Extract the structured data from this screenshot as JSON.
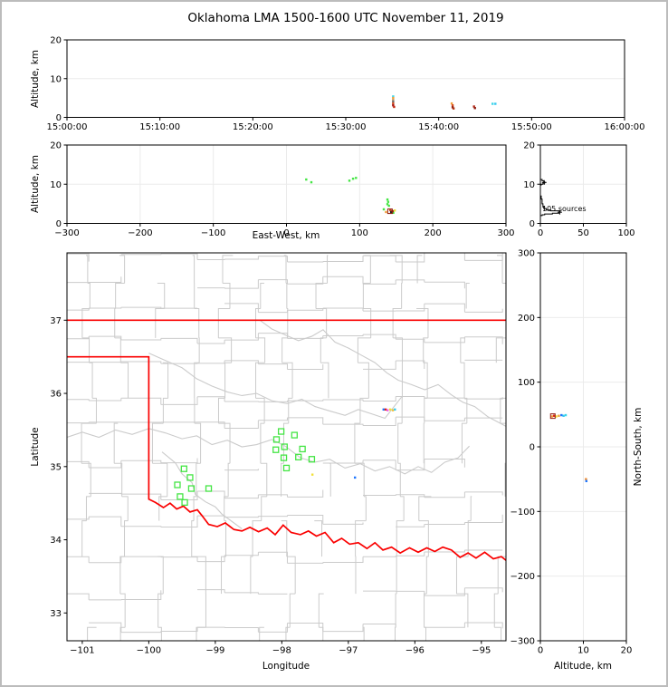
{
  "title": "Oklahoma LMA 1500-1600 UTC November 11, 2019",
  "labels": {
    "altitude_km": "Altitude, km",
    "east_west": "East-West, km",
    "latitude": "Latitude",
    "longitude": "Longitude",
    "north_south": "North-South, km",
    "sources_annotation": "105 sources"
  },
  "colors": {
    "frame_border": "#bcbcbc",
    "axis": "#000000",
    "grid": "#ebebeb",
    "county": "#cbcbcb",
    "river": "#cbcbcb",
    "state_border": "#fa0000",
    "station_green": "#44e544",
    "histogram_line": "#000000"
  },
  "chart_data": [
    {
      "id": "time_height",
      "type": "scatter",
      "xlabel": "",
      "ylabel": "Altitude, km",
      "xlim": [
        0,
        60
      ],
      "ylim": [
        0,
        20
      ],
      "xticks": {
        "values": [
          0,
          10,
          20,
          30,
          40,
          50,
          60
        ],
        "labels": [
          "15:00:00",
          "15:10:00",
          "15:20:00",
          "15:30:00",
          "15:40:00",
          "15:50:00",
          "16:00:00"
        ]
      },
      "yticks": {
        "values": [
          0,
          10,
          20
        ],
        "labels": [
          "0",
          "10",
          "20"
        ]
      },
      "xgrid": [],
      "ygrid": [
        10
      ],
      "points": [
        [
          35.1,
          5.4,
          "#3ad6e8"
        ],
        [
          35.1,
          5.0,
          "#f2a03a"
        ],
        [
          35.1,
          4.5,
          "#caa06a"
        ],
        [
          35.1,
          4.1,
          "#6b6b6b"
        ],
        [
          35.1,
          3.6,
          "#d24a1e"
        ],
        [
          35.1,
          3.1,
          "#a01313"
        ],
        [
          35.2,
          2.7,
          "#c22a12"
        ],
        [
          41.4,
          3.6,
          "#f2a03a"
        ],
        [
          41.5,
          3.1,
          "#d24a1e"
        ],
        [
          41.5,
          2.6,
          "#8f1a0e"
        ],
        [
          41.6,
          2.3,
          "#b03010"
        ],
        [
          43.8,
          2.8,
          "#b22a17"
        ],
        [
          43.9,
          2.4,
          "#8f1a0e"
        ],
        [
          45.8,
          3.5,
          "#3ad6e8"
        ],
        [
          46.1,
          3.5,
          "#35c8f0"
        ]
      ]
    },
    {
      "id": "ew_height",
      "type": "scatter",
      "xlabel": "East-West, km",
      "ylabel": "Altitude, km",
      "xlim": [
        -300,
        300
      ],
      "ylim": [
        0,
        20
      ],
      "xticks": {
        "values": [
          -300,
          -200,
          -100,
          0,
          100,
          200,
          300
        ],
        "labels": [
          "−300",
          "−200",
          "−100",
          "0",
          "100",
          "200",
          "300"
        ]
      },
      "yticks": {
        "values": [
          0,
          10,
          20
        ],
        "labels": [
          "0",
          "10",
          "20"
        ]
      },
      "xgrid": [
        -200,
        -100,
        0,
        100,
        200
      ],
      "ygrid": [
        10
      ],
      "points": [
        [
          27,
          11.2,
          "#44e544"
        ],
        [
          34,
          10.5,
          "#44e544"
        ],
        [
          86,
          10.9,
          "#44e544"
        ],
        [
          91,
          11.4,
          "#44e544"
        ],
        [
          95,
          11.6,
          "#44e544"
        ],
        [
          138,
          6.1,
          "#44e544"
        ],
        [
          139,
          5.5,
          "#44e544"
        ],
        [
          138,
          4.9,
          "#44e544"
        ],
        [
          140,
          4.5,
          "#44e544"
        ],
        [
          133,
          3.6,
          "#44e544"
        ],
        [
          146,
          2.7,
          "#44e544"
        ],
        [
          148,
          3.3,
          "#f2e03a"
        ],
        [
          136,
          2.9,
          "#f2a03a"
        ],
        [
          142,
          3.4,
          "#d24a1e"
        ],
        [
          143,
          2.9,
          "#222222"
        ],
        [
          145,
          3.1,
          "#8f1a0e"
        ]
      ],
      "squares": [
        [
          141.5,
          3.1,
          "#8f1a0e"
        ]
      ]
    },
    {
      "id": "alt_histogram",
      "type": "step",
      "xlabel": "",
      "ylabel": "",
      "xlim": [
        0,
        100
      ],
      "ylim": [
        0,
        20
      ],
      "xticks": {
        "values": [
          0,
          50,
          100
        ],
        "labels": [
          "0",
          "50",
          "100"
        ]
      },
      "yticks": {
        "values": [
          0,
          10,
          20
        ],
        "labels": [
          "0",
          "10",
          "20"
        ]
      },
      "xgrid": [
        50
      ],
      "ygrid": [
        10
      ],
      "annotation": "105 sources",
      "steps": [
        [
          0,
          0
        ],
        [
          0,
          2.0
        ],
        [
          2,
          2.0
        ],
        [
          2,
          2.2
        ],
        [
          5,
          2.2
        ],
        [
          5,
          2.4
        ],
        [
          14,
          2.4
        ],
        [
          14,
          2.6
        ],
        [
          22,
          2.6
        ],
        [
          22,
          3.0
        ],
        [
          23,
          3.0
        ],
        [
          23,
          3.2
        ],
        [
          12,
          3.2
        ],
        [
          12,
          3.4
        ],
        [
          7,
          3.4
        ],
        [
          7,
          3.8
        ],
        [
          4,
          3.8
        ],
        [
          4,
          4.2
        ],
        [
          3,
          4.2
        ],
        [
          3,
          5.0
        ],
        [
          2,
          5.0
        ],
        [
          2,
          6.2
        ],
        [
          1,
          6.2
        ],
        [
          1,
          7.0
        ],
        [
          0,
          7.0
        ],
        [
          0,
          9.8
        ],
        [
          1,
          9.8
        ],
        [
          1,
          10.0
        ],
        [
          3,
          10.0
        ],
        [
          3,
          10.3
        ],
        [
          5,
          10.3
        ],
        [
          5,
          10.6
        ],
        [
          4,
          10.6
        ],
        [
          4,
          10.9
        ],
        [
          2,
          10.9
        ],
        [
          2,
          11.2
        ],
        [
          0,
          11.2
        ],
        [
          0,
          20
        ]
      ],
      "plus_markers": [
        [
          22.5,
          2.85
        ],
        [
          4.5,
          10.45
        ]
      ]
    },
    {
      "id": "map",
      "type": "scatter",
      "xlabel": "Longitude",
      "ylabel": "Latitude",
      "xlim": [
        -101.23,
        -94.63
      ],
      "ylim": [
        32.62,
        37.92
      ],
      "xticks": {
        "values": [
          -101,
          -100,
          -99,
          -98,
          -97,
          -96,
          -95
        ],
        "labels": [
          "−101",
          "−100",
          "−99",
          "−98",
          "−97",
          "−96",
          "−95"
        ]
      },
      "yticks": {
        "values": [
          33,
          34,
          35,
          36,
          37
        ],
        "labels": [
          "33",
          "34",
          "35",
          "36",
          "37"
        ]
      },
      "xgrid": [],
      "ygrid": [],
      "stations": [
        [
          -98.01,
          35.48
        ],
        [
          -97.81,
          35.43
        ],
        [
          -98.08,
          35.37
        ],
        [
          -97.96,
          35.27
        ],
        [
          -98.09,
          35.23
        ],
        [
          -97.69,
          35.24
        ],
        [
          -97.97,
          35.12
        ],
        [
          -97.75,
          35.13
        ],
        [
          -97.55,
          35.1
        ],
        [
          -97.93,
          34.98
        ],
        [
          -99.47,
          34.97
        ],
        [
          -99.38,
          34.85
        ],
        [
          -99.57,
          34.75
        ],
        [
          -99.36,
          34.7
        ],
        [
          -99.1,
          34.7
        ],
        [
          -99.53,
          34.59
        ],
        [
          -99.46,
          34.51
        ]
      ],
      "points": [
        [
          -96.47,
          35.78,
          "#1f77ff"
        ],
        [
          -96.44,
          35.78,
          "#e02418"
        ],
        [
          -96.41,
          35.77,
          "#f05ae0"
        ],
        [
          -96.37,
          35.78,
          "#f2e03a"
        ],
        [
          -96.33,
          35.77,
          "#f2c03a"
        ],
        [
          -96.3,
          35.78,
          "#35c8f0"
        ],
        [
          -97.54,
          34.89,
          "#f2e03a"
        ],
        [
          -96.9,
          34.85,
          "#1f77ff"
        ]
      ],
      "state_border": [
        [
          [
            -101.23,
            37.0
          ],
          [
            -94.63,
            37.0
          ]
        ],
        [
          [
            -101.23,
            36.5
          ],
          [
            -100.0,
            36.5
          ],
          [
            -100.0,
            34.555
          ],
          [
            -99.9,
            34.51
          ],
          [
            -99.78,
            34.44
          ],
          [
            -99.68,
            34.5
          ],
          [
            -99.58,
            34.42
          ],
          [
            -99.48,
            34.46
          ],
          [
            -99.38,
            34.38
          ],
          [
            -99.27,
            34.41
          ],
          [
            -99.2,
            34.33
          ],
          [
            -99.1,
            34.21
          ],
          [
            -98.97,
            34.18
          ],
          [
            -98.85,
            34.23
          ],
          [
            -98.72,
            34.14
          ],
          [
            -98.6,
            34.12
          ],
          [
            -98.48,
            34.17
          ],
          [
            -98.35,
            34.11
          ],
          [
            -98.22,
            34.16
          ],
          [
            -98.1,
            34.07
          ],
          [
            -97.98,
            34.2
          ],
          [
            -97.86,
            34.1
          ],
          [
            -97.72,
            34.07
          ],
          [
            -97.6,
            34.12
          ],
          [
            -97.48,
            34.05
          ],
          [
            -97.35,
            34.1
          ],
          [
            -97.22,
            33.96
          ],
          [
            -97.1,
            34.02
          ],
          [
            -96.98,
            33.94
          ],
          [
            -96.85,
            33.96
          ],
          [
            -96.72,
            33.88
          ],
          [
            -96.6,
            33.96
          ],
          [
            -96.48,
            33.86
          ],
          [
            -96.35,
            33.9
          ],
          [
            -96.22,
            33.82
          ],
          [
            -96.08,
            33.89
          ],
          [
            -95.95,
            33.83
          ],
          [
            -95.82,
            33.89
          ],
          [
            -95.7,
            33.84
          ],
          [
            -95.58,
            33.9
          ],
          [
            -95.45,
            33.86
          ],
          [
            -95.32,
            33.76
          ],
          [
            -95.2,
            33.82
          ],
          [
            -95.08,
            33.75
          ],
          [
            -94.95,
            33.83
          ],
          [
            -94.82,
            33.74
          ],
          [
            -94.7,
            33.77
          ],
          [
            -94.63,
            33.72
          ]
        ]
      ],
      "rivers": [
        [
          [
            -98.33,
            37.0
          ],
          [
            -98.15,
            36.88
          ],
          [
            -97.95,
            36.8
          ],
          [
            -97.75,
            36.72
          ],
          [
            -97.55,
            36.78
          ],
          [
            -97.38,
            36.87
          ],
          [
            -97.2,
            36.7
          ],
          [
            -97.0,
            36.62
          ],
          [
            -96.8,
            36.52
          ],
          [
            -96.6,
            36.42
          ],
          [
            -96.42,
            36.28
          ],
          [
            -96.25,
            36.18
          ],
          [
            -96.05,
            36.12
          ],
          [
            -95.85,
            36.05
          ],
          [
            -95.65,
            36.12
          ],
          [
            -95.45,
            35.98
          ],
          [
            -95.28,
            35.88
          ],
          [
            -95.1,
            35.82
          ],
          [
            -94.9,
            35.68
          ],
          [
            -94.63,
            35.55
          ]
        ],
        [
          [
            -100.0,
            36.55
          ],
          [
            -99.75,
            36.45
          ],
          [
            -99.5,
            36.35
          ],
          [
            -99.28,
            36.2
          ],
          [
            -99.05,
            36.1
          ],
          [
            -98.82,
            36.02
          ],
          [
            -98.6,
            35.97
          ],
          [
            -98.38,
            36.0
          ],
          [
            -98.15,
            35.9
          ],
          [
            -97.92,
            35.86
          ],
          [
            -97.7,
            35.92
          ],
          [
            -97.5,
            35.82
          ],
          [
            -97.28,
            35.76
          ],
          [
            -97.05,
            35.7
          ],
          [
            -96.85,
            35.78
          ],
          [
            -96.65,
            35.72
          ],
          [
            -96.45,
            35.66
          ],
          [
            -96.2,
            35.95
          ]
        ],
        [
          [
            -101.23,
            35.4
          ],
          [
            -101.0,
            35.47
          ],
          [
            -100.75,
            35.4
          ],
          [
            -100.5,
            35.5
          ],
          [
            -100.25,
            35.44
          ],
          [
            -100.0,
            35.52
          ],
          [
            -99.75,
            35.46
          ],
          [
            -99.5,
            35.38
          ],
          [
            -99.28,
            35.42
          ],
          [
            -99.05,
            35.3
          ],
          [
            -98.82,
            35.36
          ],
          [
            -98.6,
            35.27
          ],
          [
            -98.38,
            35.3
          ],
          [
            -98.15,
            35.37
          ],
          [
            -97.95,
            35.28
          ],
          [
            -97.72,
            35.12
          ],
          [
            -97.5,
            35.06
          ],
          [
            -97.28,
            35.1
          ],
          [
            -97.05,
            34.98
          ],
          [
            -96.82,
            35.04
          ],
          [
            -96.6,
            34.94
          ],
          [
            -96.38,
            35.0
          ],
          [
            -96.15,
            34.9
          ],
          [
            -95.95,
            35.0
          ],
          [
            -95.75,
            34.92
          ],
          [
            -95.55,
            35.06
          ],
          [
            -95.35,
            35.12
          ],
          [
            -95.18,
            35.28
          ]
        ],
        [
          [
            -99.8,
            35.2
          ],
          [
            -99.6,
            35.05
          ],
          [
            -99.5,
            34.9
          ],
          [
            -99.35,
            34.78
          ],
          [
            -99.3,
            34.62
          ],
          [
            -99.15,
            34.52
          ],
          [
            -99.0,
            34.45
          ],
          [
            -98.9,
            34.35
          ],
          [
            -98.75,
            34.25
          ],
          [
            -98.6,
            34.15
          ]
        ]
      ],
      "county_gen": {
        "seed": 42,
        "dlon": 0.5,
        "dlat": 0.46,
        "jog": 0.13,
        "skip": 0.14
      }
    },
    {
      "id": "ns_height",
      "type": "scatter",
      "xlabel": "Altitude, km",
      "ylabel": "North-South, km",
      "xlim": [
        0,
        20
      ],
      "ylim": [
        -300,
        300
      ],
      "xticks": {
        "values": [
          0,
          10,
          20
        ],
        "labels": [
          "0",
          "10",
          "20"
        ]
      },
      "yticks": {
        "values": [
          -300,
          -200,
          -100,
          0,
          100,
          200,
          300
        ],
        "labels": [
          "−300",
          "−200",
          "−100",
          "0",
          "100",
          "200",
          "300"
        ]
      },
      "xgrid": [
        10
      ],
      "ygrid": [
        -200,
        -100,
        0,
        100,
        200
      ],
      "points": [
        [
          2.7,
          47,
          "#f2a03a"
        ],
        [
          3.2,
          48,
          "#e02418"
        ],
        [
          3.7,
          47,
          "#f2e03a"
        ],
        [
          4.3,
          48,
          "#f2a03a"
        ],
        [
          4.9,
          49,
          "#1f77ff"
        ],
        [
          5.4,
          48,
          "#35c8f0"
        ],
        [
          5.9,
          49,
          "#3ad6e8"
        ],
        [
          10.6,
          -50,
          "#f28a2c"
        ],
        [
          10.7,
          -53,
          "#1f77ff"
        ]
      ],
      "squares": [
        [
          2.9,
          47.5,
          "#8f1a0e"
        ]
      ]
    }
  ]
}
